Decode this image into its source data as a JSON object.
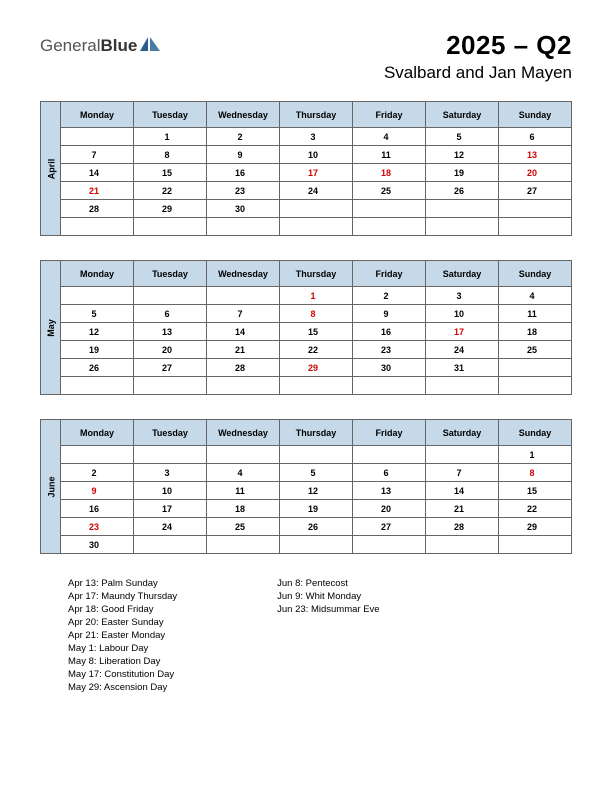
{
  "header": {
    "logo_text1": "General",
    "logo_text2": "Blue",
    "title": "2025 – Q2",
    "subtitle": "Svalbard and Jan Mayen"
  },
  "day_headers": [
    "Monday",
    "Tuesday",
    "Wednesday",
    "Thursday",
    "Friday",
    "Saturday",
    "Sunday"
  ],
  "colors": {
    "header_bg": "#c5d9e8",
    "border": "#666666",
    "holiday_text": "#d00000",
    "text": "#000000",
    "logo_dark": "#2b5d8c",
    "logo_light": "#4a7ba6"
  },
  "months": [
    {
      "name": "April",
      "weeks": [
        [
          {
            "d": ""
          },
          {
            "d": "1"
          },
          {
            "d": "2"
          },
          {
            "d": "3"
          },
          {
            "d": "4"
          },
          {
            "d": "5"
          },
          {
            "d": "6"
          }
        ],
        [
          {
            "d": "7"
          },
          {
            "d": "8"
          },
          {
            "d": "9"
          },
          {
            "d": "10"
          },
          {
            "d": "11"
          },
          {
            "d": "12"
          },
          {
            "d": "13",
            "h": true
          }
        ],
        [
          {
            "d": "14"
          },
          {
            "d": "15"
          },
          {
            "d": "16"
          },
          {
            "d": "17",
            "h": true
          },
          {
            "d": "18",
            "h": true
          },
          {
            "d": "19"
          },
          {
            "d": "20",
            "h": true
          }
        ],
        [
          {
            "d": "21",
            "h": true
          },
          {
            "d": "22"
          },
          {
            "d": "23"
          },
          {
            "d": "24"
          },
          {
            "d": "25"
          },
          {
            "d": "26"
          },
          {
            "d": "27"
          }
        ],
        [
          {
            "d": "28"
          },
          {
            "d": "29"
          },
          {
            "d": "30"
          },
          {
            "d": ""
          },
          {
            "d": ""
          },
          {
            "d": ""
          },
          {
            "d": ""
          }
        ],
        [
          {
            "d": ""
          },
          {
            "d": ""
          },
          {
            "d": ""
          },
          {
            "d": ""
          },
          {
            "d": ""
          },
          {
            "d": ""
          },
          {
            "d": ""
          }
        ]
      ]
    },
    {
      "name": "May",
      "weeks": [
        [
          {
            "d": ""
          },
          {
            "d": ""
          },
          {
            "d": ""
          },
          {
            "d": "1",
            "h": true
          },
          {
            "d": "2"
          },
          {
            "d": "3"
          },
          {
            "d": "4"
          }
        ],
        [
          {
            "d": "5"
          },
          {
            "d": "6"
          },
          {
            "d": "7"
          },
          {
            "d": "8",
            "h": true
          },
          {
            "d": "9"
          },
          {
            "d": "10"
          },
          {
            "d": "11"
          }
        ],
        [
          {
            "d": "12"
          },
          {
            "d": "13"
          },
          {
            "d": "14"
          },
          {
            "d": "15"
          },
          {
            "d": "16"
          },
          {
            "d": "17",
            "h": true
          },
          {
            "d": "18"
          }
        ],
        [
          {
            "d": "19"
          },
          {
            "d": "20"
          },
          {
            "d": "21"
          },
          {
            "d": "22"
          },
          {
            "d": "23"
          },
          {
            "d": "24"
          },
          {
            "d": "25"
          }
        ],
        [
          {
            "d": "26"
          },
          {
            "d": "27"
          },
          {
            "d": "28"
          },
          {
            "d": "29",
            "h": true
          },
          {
            "d": "30"
          },
          {
            "d": "31"
          },
          {
            "d": ""
          }
        ],
        [
          {
            "d": ""
          },
          {
            "d": ""
          },
          {
            "d": ""
          },
          {
            "d": ""
          },
          {
            "d": ""
          },
          {
            "d": ""
          },
          {
            "d": ""
          }
        ]
      ]
    },
    {
      "name": "June",
      "weeks": [
        [
          {
            "d": ""
          },
          {
            "d": ""
          },
          {
            "d": ""
          },
          {
            "d": ""
          },
          {
            "d": ""
          },
          {
            "d": ""
          },
          {
            "d": "1"
          }
        ],
        [
          {
            "d": "2"
          },
          {
            "d": "3"
          },
          {
            "d": "4"
          },
          {
            "d": "5"
          },
          {
            "d": "6"
          },
          {
            "d": "7"
          },
          {
            "d": "8",
            "h": true
          }
        ],
        [
          {
            "d": "9",
            "h": true
          },
          {
            "d": "10"
          },
          {
            "d": "11"
          },
          {
            "d": "12"
          },
          {
            "d": "13"
          },
          {
            "d": "14"
          },
          {
            "d": "15"
          }
        ],
        [
          {
            "d": "16"
          },
          {
            "d": "17"
          },
          {
            "d": "18"
          },
          {
            "d": "19"
          },
          {
            "d": "20"
          },
          {
            "d": "21"
          },
          {
            "d": "22"
          }
        ],
        [
          {
            "d": "23",
            "h": true
          },
          {
            "d": "24"
          },
          {
            "d": "25"
          },
          {
            "d": "26"
          },
          {
            "d": "27"
          },
          {
            "d": "28"
          },
          {
            "d": "29"
          }
        ],
        [
          {
            "d": "30"
          },
          {
            "d": ""
          },
          {
            "d": ""
          },
          {
            "d": ""
          },
          {
            "d": ""
          },
          {
            "d": ""
          },
          {
            "d": ""
          }
        ]
      ]
    }
  ],
  "holidays_left": [
    "Apr 13: Palm Sunday",
    "Apr 17: Maundy Thursday",
    "Apr 18: Good Friday",
    "Apr 20: Easter Sunday",
    "Apr 21: Easter Monday",
    "May 1: Labour Day",
    "May 8: Liberation Day",
    "May 17: Constitution Day",
    "May 29: Ascension Day"
  ],
  "holidays_right": [
    "Jun 8: Pentecost",
    "Jun 9: Whit Monday",
    "Jun 23: Midsummar Eve"
  ]
}
